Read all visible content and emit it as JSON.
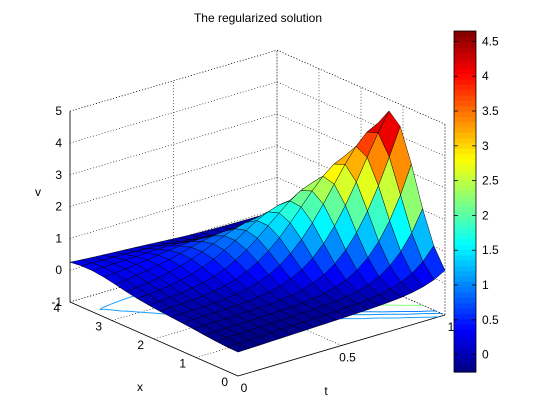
{
  "chart_data": {
    "type": "surface",
    "title": "The regularized solution",
    "xlabel": "t",
    "ylabel": "x",
    "zlabel": "v",
    "t_range": [
      0,
      1
    ],
    "x_range": [
      0,
      4
    ],
    "z_range": [
      -1,
      5
    ],
    "t_ticks": [
      0,
      0.5,
      1
    ],
    "x_ticks": [
      0,
      1,
      2,
      3,
      4
    ],
    "z_ticks": [
      -1,
      0,
      1,
      2,
      3,
      4,
      5
    ],
    "grid": true,
    "colormap": "jet",
    "colorbar": {
      "range": [
        -0.25,
        4.65
      ],
      "ticks": [
        0,
        0.5,
        1,
        1.5,
        2,
        2.5,
        3,
        3.5,
        4,
        4.5
      ],
      "tick_labels": [
        "0",
        "0.5",
        "1",
        "1.5",
        "2",
        "2.5",
        "3",
        "3.5",
        "4",
        "4.5"
      ]
    },
    "surface": {
      "t_samples": [
        0,
        0.0526,
        0.1053,
        0.1579,
        0.2105,
        0.2632,
        0.3158,
        0.3684,
        0.4211,
        0.4737,
        0.5263,
        0.5789,
        0.6316,
        0.6842,
        0.7368,
        0.7895,
        0.8421,
        0.8947,
        0.9474,
        1
      ],
      "x_samples": [
        0,
        0.2667,
        0.5333,
        0.8,
        1.0667,
        1.3333,
        1.6,
        1.8667,
        2.1333,
        2.4,
        2.6667,
        2.9333,
        3.2,
        3.4667,
        3.7333,
        4
      ],
      "peak_value": 4.6,
      "min_value": -0.2
    },
    "contour_lines": [
      {
        "level": 0.9,
        "color": "#0f80ff"
      },
      {
        "level": 0.6,
        "color": "#1090ff"
      },
      {
        "level": 0.3,
        "color": "#20a0ff"
      },
      {
        "level": 2.0,
        "color": "#80ff80"
      }
    ]
  }
}
